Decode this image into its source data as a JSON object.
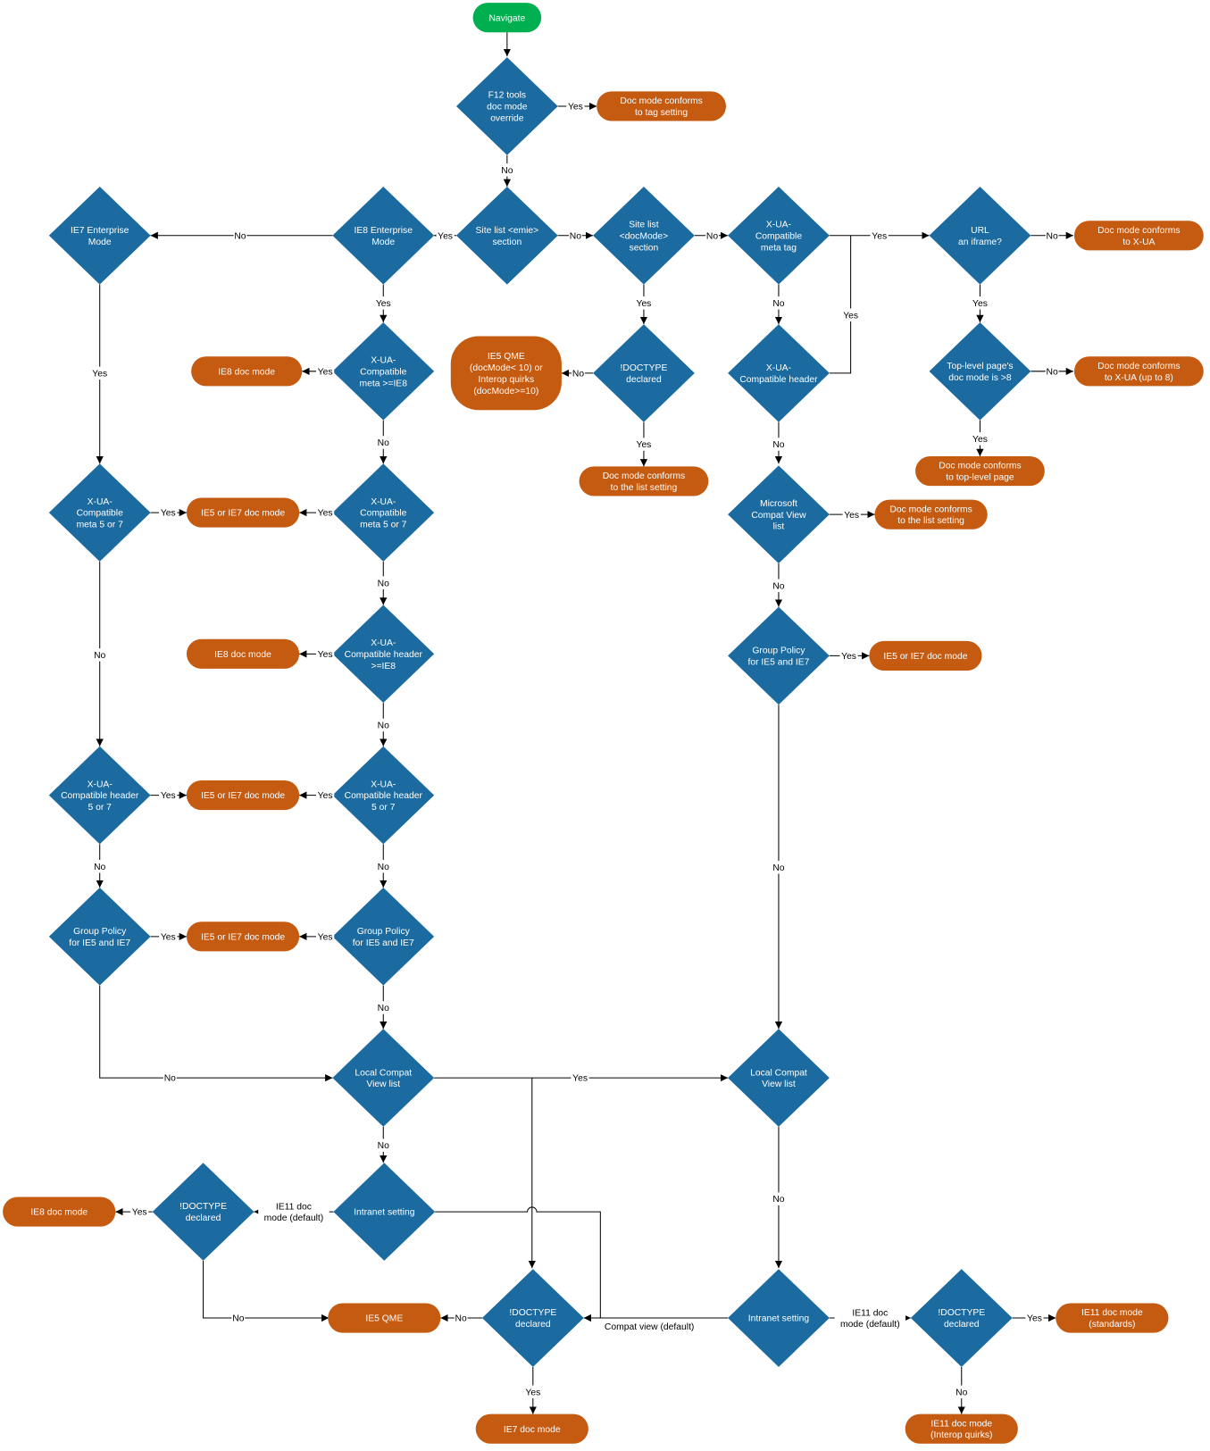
{
  "colors": {
    "decision": "#1b6aa0",
    "terminal": "#c55a11",
    "start": "#00b050",
    "edge": "#000000"
  },
  "nodes": [
    {
      "id": "navigate",
      "kind": "start",
      "lines": [
        "Navigate"
      ]
    },
    {
      "id": "f12",
      "kind": "decision",
      "lines": [
        "F12 tools",
        "doc mode",
        "override"
      ]
    },
    {
      "id": "tag_setting",
      "kind": "terminal",
      "lines": [
        "Doc mode conforms",
        "to tag setting"
      ]
    },
    {
      "id": "emie",
      "kind": "decision",
      "lines": [
        "Site list <emie>",
        "section"
      ]
    },
    {
      "id": "ie8_ent",
      "kind": "decision",
      "lines": [
        "IE8 Enterprise",
        "Mode"
      ]
    },
    {
      "id": "ie7_ent",
      "kind": "decision",
      "lines": [
        "IE7 Enterprise",
        "Mode"
      ]
    },
    {
      "id": "docmode_section",
      "kind": "decision",
      "lines": [
        "Site list",
        "<docMode>",
        "section"
      ]
    },
    {
      "id": "xua_meta",
      "kind": "decision",
      "lines": [
        "X-UA-",
        "Compatible",
        "meta tag"
      ]
    },
    {
      "id": "url_iframe",
      "kind": "decision",
      "lines": [
        "URL",
        "an iframe?"
      ]
    },
    {
      "id": "conforms_xua",
      "kind": "terminal",
      "lines": [
        "Doc mode conforms",
        "to X-UA"
      ]
    },
    {
      "id": "xua_meta_ie8",
      "kind": "decision",
      "lines": [
        "X-UA-",
        "Compatible",
        "meta >=IE8"
      ]
    },
    {
      "id": "ie8_doc_1",
      "kind": "terminal",
      "lines": [
        "IE8 doc mode"
      ]
    },
    {
      "id": "ie5qme_quirks",
      "kind": "box",
      "lines": [
        "IE5 QME",
        "(docMode< 10) or",
        "Interop quirks",
        "(docMode>=10)"
      ]
    },
    {
      "id": "doctype_1",
      "kind": "decision",
      "lines": [
        "!DOCTYPE",
        "declared"
      ]
    },
    {
      "id": "conforms_list_1",
      "kind": "terminal",
      "lines": [
        "Doc mode conforms",
        "to the list setting"
      ]
    },
    {
      "id": "xua_header",
      "kind": "decision",
      "lines": [
        "X-UA-",
        "Compatible header"
      ]
    },
    {
      "id": "toplevel",
      "kind": "decision",
      "lines": [
        "Top-level page's",
        "doc mode is >8"
      ]
    },
    {
      "id": "conforms_xua8",
      "kind": "terminal",
      "lines": [
        "Doc mode conforms",
        "to X-UA (up to 8)"
      ]
    },
    {
      "id": "conforms_top",
      "kind": "terminal",
      "lines": [
        "Doc mode conforms",
        "to top-level page"
      ]
    },
    {
      "id": "xua_meta57_l",
      "kind": "decision",
      "lines": [
        "X-UA-",
        "Compatible",
        "meta 5 or 7"
      ]
    },
    {
      "id": "ie5ie7_1",
      "kind": "terminal",
      "lines": [
        "IE5 or IE7 doc mode"
      ]
    },
    {
      "id": "xua_meta57",
      "kind": "decision",
      "lines": [
        "X-UA-",
        "Compatible",
        "meta 5 or 7"
      ]
    },
    {
      "id": "ms_compat",
      "kind": "decision",
      "lines": [
        "Microsoft",
        "Compat View",
        "list"
      ]
    },
    {
      "id": "conforms_list_2",
      "kind": "terminal",
      "lines": [
        "Doc mode conforms",
        "to the list setting"
      ]
    },
    {
      "id": "xua_header_ie8",
      "kind": "decision",
      "lines": [
        "X-UA-",
        "Compatible header",
        ">=IE8"
      ]
    },
    {
      "id": "ie8_doc_2",
      "kind": "terminal",
      "lines": [
        "IE8 doc mode"
      ]
    },
    {
      "id": "group_r",
      "kind": "decision",
      "lines": [
        "Group Policy",
        "for IE5 and IE7"
      ]
    },
    {
      "id": "ie5ie7_r",
      "kind": "terminal",
      "lines": [
        "IE5 or IE7 doc mode"
      ]
    },
    {
      "id": "xua_header57_l",
      "kind": "decision",
      "lines": [
        "X-UA-",
        "Compatible header",
        "5 or 7"
      ]
    },
    {
      "id": "ie5ie7_2",
      "kind": "terminal",
      "lines": [
        "IE5 or IE7 doc mode"
      ]
    },
    {
      "id": "xua_header57",
      "kind": "decision",
      "lines": [
        "X-UA-",
        "Compatible header",
        "5 or 7"
      ]
    },
    {
      "id": "group_l",
      "kind": "decision",
      "lines": [
        "Group Policy",
        "for IE5 and IE7"
      ]
    },
    {
      "id": "ie5ie7_3",
      "kind": "terminal",
      "lines": [
        "IE5 or IE7 doc mode"
      ]
    },
    {
      "id": "group_m",
      "kind": "decision",
      "lines": [
        "Group Policy",
        "for IE5 and IE7"
      ]
    },
    {
      "id": "local_m",
      "kind": "decision",
      "lines": [
        "Local Compat",
        "View list"
      ]
    },
    {
      "id": "local_r",
      "kind": "decision",
      "lines": [
        "Local Compat",
        "View list"
      ]
    },
    {
      "id": "intranet_m",
      "kind": "decision",
      "lines": [
        "Intranet setting"
      ]
    },
    {
      "id": "doctype_l",
      "kind": "decision",
      "lines": [
        "!DOCTYPE",
        "declared"
      ]
    },
    {
      "id": "ie8_doc_3",
      "kind": "terminal",
      "lines": [
        "IE8 doc mode"
      ]
    },
    {
      "id": "ie5qme",
      "kind": "terminal",
      "lines": [
        "IE5 QME"
      ]
    },
    {
      "id": "doctype_m",
      "kind": "decision",
      "lines": [
        "!DOCTYPE",
        "declared"
      ]
    },
    {
      "id": "ie7_doc",
      "kind": "terminal",
      "lines": [
        "IE7 doc mode"
      ]
    },
    {
      "id": "intranet_r",
      "kind": "decision",
      "lines": [
        "Intranet setting"
      ]
    },
    {
      "id": "doctype_r",
      "kind": "decision",
      "lines": [
        "!DOCTYPE",
        "declared"
      ]
    },
    {
      "id": "ie11_std",
      "kind": "terminal",
      "lines": [
        "IE11 doc mode",
        "(standards)"
      ]
    },
    {
      "id": "ie11_quirks",
      "kind": "terminal",
      "lines": [
        "IE11 doc mode",
        "(Interop quirks)"
      ]
    }
  ],
  "edges": [
    {
      "from": "navigate",
      "to": "f12",
      "lines": []
    },
    {
      "from": "f12",
      "to": "tag_setting",
      "lines": [
        "Yes"
      ]
    },
    {
      "from": "f12",
      "to": "emie",
      "lines": [
        "No"
      ]
    },
    {
      "from": "emie",
      "to": "ie8_ent",
      "lines": [
        "Yes"
      ]
    },
    {
      "from": "ie8_ent",
      "to": "ie7_ent",
      "lines": [
        "No"
      ]
    },
    {
      "from": "emie",
      "to": "docmode_section",
      "lines": [
        "No"
      ]
    },
    {
      "from": "docmode_section",
      "to": "xua_meta",
      "lines": [
        "No"
      ]
    },
    {
      "from": "xua_meta",
      "to": "url_iframe",
      "lines": [
        "Yes"
      ]
    },
    {
      "from": "url_iframe",
      "to": "conforms_xua",
      "lines": [
        "No"
      ]
    },
    {
      "from": "ie8_ent",
      "to": "xua_meta_ie8",
      "lines": [
        "Yes"
      ]
    },
    {
      "from": "docmode_section",
      "to": "doctype_1",
      "lines": [
        "Yes"
      ]
    },
    {
      "from": "xua_meta",
      "to": "xua_header",
      "lines": [
        "No"
      ]
    },
    {
      "from": "xua_header",
      "to": "url_iframe",
      "lines": [
        "Yes"
      ]
    },
    {
      "from": "url_iframe",
      "to": "toplevel",
      "lines": [
        "Yes"
      ]
    },
    {
      "from": "xua_meta_ie8",
      "to": "ie8_doc_1",
      "lines": [
        "Yes"
      ]
    },
    {
      "from": "doctype_1",
      "to": "ie5qme_quirks",
      "lines": [
        "No"
      ]
    },
    {
      "from": "toplevel",
      "to": "conforms_xua8",
      "lines": [
        "No"
      ]
    },
    {
      "from": "ie7_ent",
      "to": "xua_meta57_l",
      "lines": [
        "Yes"
      ]
    },
    {
      "from": "xua_meta_ie8",
      "to": "xua_meta57",
      "lines": [
        "No"
      ]
    },
    {
      "from": "doctype_1",
      "to": "conforms_list_1",
      "lines": [
        "Yes"
      ]
    },
    {
      "from": "xua_header",
      "to": "ms_compat",
      "lines": [
        "No"
      ]
    },
    {
      "from": "toplevel",
      "to": "conforms_top",
      "lines": [
        "Yes"
      ]
    },
    {
      "from": "xua_meta57_l",
      "to": "ie5ie7_1",
      "lines": [
        "Yes"
      ]
    },
    {
      "from": "xua_meta57",
      "to": "ie5ie7_1",
      "lines": [
        "Yes"
      ]
    },
    {
      "from": "ms_compat",
      "to": "conforms_list_2",
      "lines": [
        "Yes"
      ]
    },
    {
      "from": "xua_meta57_l",
      "to": "xua_header57_l",
      "lines": [
        "No"
      ]
    },
    {
      "from": "xua_meta57",
      "to": "xua_header_ie8",
      "lines": [
        "No"
      ]
    },
    {
      "from": "ms_compat",
      "to": "group_r",
      "lines": [
        "No"
      ]
    },
    {
      "from": "xua_header_ie8",
      "to": "ie8_doc_2",
      "lines": [
        "Yes"
      ]
    },
    {
      "from": "group_r",
      "to": "ie5ie7_r",
      "lines": [
        "Yes"
      ]
    },
    {
      "from": "xua_header_ie8",
      "to": "xua_header57",
      "lines": [
        "No"
      ]
    },
    {
      "from": "xua_header57_l",
      "to": "ie5ie7_2",
      "lines": [
        "Yes"
      ]
    },
    {
      "from": "xua_header57",
      "to": "ie5ie7_2",
      "lines": [
        "Yes"
      ]
    },
    {
      "from": "group_r",
      "to": "local_r",
      "lines": [
        "No"
      ]
    },
    {
      "from": "xua_header57_l",
      "to": "group_l",
      "lines": [
        "No"
      ]
    },
    {
      "from": "xua_header57",
      "to": "group_m",
      "lines": [
        "No"
      ]
    },
    {
      "from": "group_l",
      "to": "ie5ie7_3",
      "lines": [
        "Yes"
      ]
    },
    {
      "from": "group_m",
      "to": "ie5ie7_3",
      "lines": [
        "Yes"
      ]
    },
    {
      "from": "group_m",
      "to": "local_m",
      "lines": [
        "No"
      ]
    },
    {
      "from": "group_l",
      "to": "local_m",
      "lines": [
        "No"
      ]
    },
    {
      "from": "local_m",
      "to": "local_r",
      "lines": [
        "Yes"
      ]
    },
    {
      "from": "local_m",
      "to": "doctype_m",
      "lines": []
    },
    {
      "from": "local_m",
      "to": "intranet_m",
      "lines": [
        "No"
      ]
    },
    {
      "from": "intranet_m",
      "to": "doctype_l",
      "lines": [
        "IE11 doc",
        "mode (default)"
      ]
    },
    {
      "from": "intranet_m",
      "to": "doctype_m",
      "lines": []
    },
    {
      "from": "doctype_l",
      "to": "ie8_doc_3",
      "lines": [
        "Yes"
      ]
    },
    {
      "from": "doctype_l",
      "to": "ie5qme",
      "lines": [
        "No"
      ]
    },
    {
      "from": "doctype_m",
      "to": "ie5qme",
      "lines": [
        "No"
      ]
    },
    {
      "from": "intranet_r",
      "to": "doctype_m",
      "lines": [
        "Compat view (default)"
      ]
    },
    {
      "from": "local_r",
      "to": "intranet_r",
      "lines": [
        "No"
      ]
    },
    {
      "from": "intranet_r",
      "to": "doctype_r",
      "lines": [
        "IE11 doc",
        "mode (default)"
      ]
    },
    {
      "from": "doctype_r",
      "to": "ie11_std",
      "lines": [
        "Yes"
      ]
    },
    {
      "from": "doctype_r",
      "to": "ie11_quirks",
      "lines": [
        "No"
      ]
    },
    {
      "from": "doctype_m",
      "to": "ie7_doc",
      "lines": [
        "Yes"
      ]
    }
  ]
}
